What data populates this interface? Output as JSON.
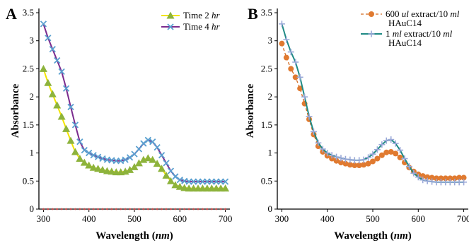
{
  "chart_data": [
    {
      "panel": "A",
      "type": "line",
      "xlabel": "Wavelength",
      "xlabel_unit": "nm",
      "ylabel": "Absorbance",
      "xlim": [
        290,
        710
      ],
      "ylim": [
        0,
        3.5
      ],
      "x_ticks": [
        300,
        400,
        500,
        600,
        700
      ],
      "y_ticks": [
        0,
        0.5,
        1,
        1.5,
        2,
        2.5,
        3,
        3.5
      ],
      "legend_position": "top-right",
      "grid": false,
      "x": [
        300,
        310,
        320,
        330,
        340,
        350,
        360,
        370,
        380,
        390,
        400,
        410,
        420,
        430,
        440,
        450,
        460,
        470,
        480,
        490,
        500,
        510,
        520,
        530,
        540,
        550,
        560,
        570,
        580,
        590,
        600,
        610,
        620,
        630,
        640,
        650,
        660,
        670,
        680,
        690,
        700
      ],
      "series": [
        {
          "name": "Time 2 hr",
          "name_prefix": "Time 2 ",
          "name_italic": "hr",
          "color": "#f2e400",
          "marker_color": "#8db33c",
          "marker": "triangle",
          "dashed": false,
          "values": [
            2.5,
            2.25,
            2.05,
            1.85,
            1.65,
            1.43,
            1.22,
            1.02,
            0.9,
            0.83,
            0.78,
            0.74,
            0.72,
            0.7,
            0.68,
            0.67,
            0.66,
            0.66,
            0.67,
            0.7,
            0.75,
            0.82,
            0.88,
            0.91,
            0.88,
            0.81,
            0.72,
            0.6,
            0.5,
            0.43,
            0.4,
            0.38,
            0.37,
            0.37,
            0.37,
            0.37,
            0.37,
            0.37,
            0.37,
            0.37,
            0.37
          ]
        },
        {
          "name": "Time 4 hr",
          "name_prefix": "Time 4 ",
          "name_italic": "hr",
          "color": "#7b2c8e",
          "marker_color": "#5aa0d0",
          "marker": "x",
          "dashed": false,
          "values": [
            3.3,
            3.05,
            2.85,
            2.65,
            2.45,
            2.15,
            1.82,
            1.5,
            1.2,
            1.05,
            1.0,
            0.96,
            0.93,
            0.9,
            0.88,
            0.87,
            0.86,
            0.86,
            0.88,
            0.92,
            0.98,
            1.07,
            1.17,
            1.23,
            1.2,
            1.1,
            0.96,
            0.82,
            0.68,
            0.58,
            0.52,
            0.5,
            0.49,
            0.49,
            0.49,
            0.49,
            0.49,
            0.49,
            0.49,
            0.49,
            0.49
          ]
        },
        {
          "name": "",
          "color": "#c84a4a",
          "marker_color": "#c84a4a",
          "marker": "dot",
          "dashed": false,
          "baseline": true,
          "values": [
            0,
            0,
            0,
            0,
            0,
            0,
            0,
            0,
            0,
            0,
            0,
            0,
            0,
            0,
            0,
            0,
            0,
            0,
            0,
            0,
            0,
            0,
            0,
            0,
            0,
            0,
            0,
            0,
            0,
            0,
            0,
            0,
            0,
            0,
            0,
            0,
            0,
            0,
            0,
            0,
            0
          ]
        }
      ]
    },
    {
      "panel": "B",
      "type": "line",
      "xlabel": "Wavelength",
      "xlabel_unit": "nm",
      "ylabel": "Absorbance",
      "xlim": [
        290,
        710
      ],
      "ylim": [
        0,
        3.5
      ],
      "x_ticks": [
        300,
        400,
        500,
        600,
        700
      ],
      "y_ticks": [
        0,
        0.5,
        1,
        1.5,
        2,
        2.5,
        3,
        3.5
      ],
      "legend_position": "top-right",
      "grid": false,
      "x": [
        300,
        310,
        320,
        330,
        340,
        350,
        360,
        370,
        380,
        390,
        400,
        410,
        420,
        430,
        440,
        450,
        460,
        470,
        480,
        490,
        500,
        510,
        520,
        530,
        540,
        550,
        560,
        570,
        580,
        590,
        600,
        610,
        620,
        630,
        640,
        650,
        660,
        670,
        680,
        690,
        700
      ],
      "series": [
        {
          "name": "600 ul extract/10 ml HAuC14",
          "legend_lines": [
            [
              "600 ",
              "ul",
              " extract/10 ",
              "ml"
            ],
            [
              "HAuC14"
            ]
          ],
          "color": "#d2691e",
          "marker_color": "#e07a30",
          "marker": "circle",
          "dashed": true,
          "values": [
            2.95,
            2.7,
            2.5,
            2.35,
            2.15,
            1.88,
            1.6,
            1.33,
            1.12,
            1.02,
            0.95,
            0.9,
            0.86,
            0.83,
            0.81,
            0.79,
            0.78,
            0.78,
            0.79,
            0.81,
            0.85,
            0.9,
            0.96,
            1.01,
            1.02,
            0.99,
            0.92,
            0.83,
            0.74,
            0.67,
            0.62,
            0.59,
            0.57,
            0.56,
            0.55,
            0.55,
            0.55,
            0.55,
            0.55,
            0.56,
            0.56
          ]
        },
        {
          "name": "1 ml extract/10 ml HAuC14",
          "legend_lines": [
            [
              "1 ",
              "ml",
              " extract/10 ",
              "ml"
            ],
            [
              "HAuC14"
            ]
          ],
          "color": "#1f8a84",
          "marker_color": "#9aa8d8",
          "marker": "plus",
          "dashed": false,
          "values": [
            3.3,
            3.02,
            2.8,
            2.62,
            2.35,
            2.0,
            1.65,
            1.38,
            1.18,
            1.07,
            1.0,
            0.96,
            0.93,
            0.91,
            0.89,
            0.88,
            0.87,
            0.87,
            0.88,
            0.92,
            0.98,
            1.06,
            1.15,
            1.22,
            1.24,
            1.17,
            1.05,
            0.9,
            0.76,
            0.64,
            0.57,
            0.52,
            0.5,
            0.49,
            0.48,
            0.48,
            0.48,
            0.48,
            0.48,
            0.48,
            0.48
          ]
        }
      ]
    }
  ]
}
